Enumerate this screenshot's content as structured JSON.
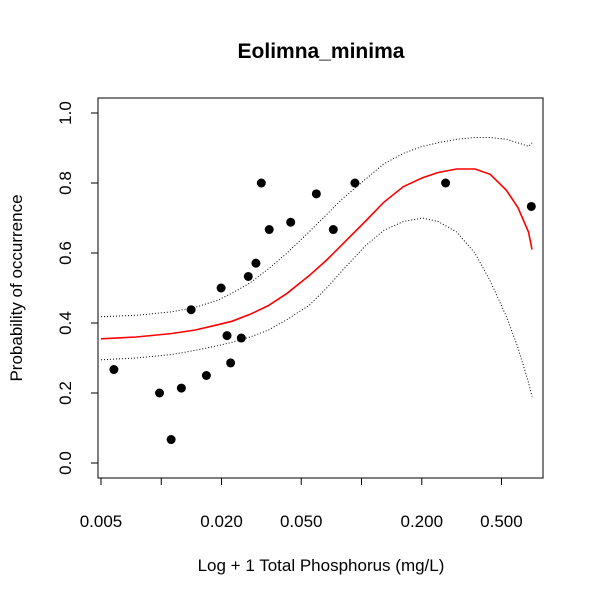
{
  "chart_data": {
    "type": "scatter",
    "title": "Eolimna_minima",
    "xlabel": "Log + 1 Total Phosphorus (mg/L)",
    "ylabel": "Probability of occurrence",
    "x_scale": "log",
    "xlim": [
      0.005,
      0.75
    ],
    "ylim": [
      0.0,
      1.0
    ],
    "x_ticks": [
      {
        "value": 0.005,
        "label": "0.005"
      },
      {
        "value": 0.01,
        "label": ""
      },
      {
        "value": 0.02,
        "label": "0.020"
      },
      {
        "value": 0.05,
        "label": "0.050"
      },
      {
        "value": 0.1,
        "label": ""
      },
      {
        "value": 0.2,
        "label": "0.200"
      },
      {
        "value": 0.5,
        "label": "0.500"
      }
    ],
    "y_ticks": [
      {
        "value": 0.0,
        "label": "0.0"
      },
      {
        "value": 0.2,
        "label": "0.2"
      },
      {
        "value": 0.4,
        "label": "0.4"
      },
      {
        "value": 0.6,
        "label": "0.6"
      },
      {
        "value": 0.8,
        "label": "0.8"
      },
      {
        "value": 1.0,
        "label": "1.0"
      }
    ],
    "grid": false,
    "points": {
      "x": [
        0.0058,
        0.0098,
        0.0112,
        0.0126,
        0.0141,
        0.0168,
        0.0199,
        0.0213,
        0.0222,
        0.0251,
        0.0272,
        0.0297,
        0.0316,
        0.0346,
        0.0443,
        0.0595,
        0.0723,
        0.0927,
        0.263,
        0.705
      ],
      "y": [
        0.267,
        0.2,
        0.067,
        0.214,
        0.438,
        0.25,
        0.5,
        0.364,
        0.286,
        0.357,
        0.533,
        0.571,
        0.8,
        0.667,
        0.688,
        0.769,
        0.667,
        0.8,
        0.8,
        0.733
      ],
      "color": "#000000"
    },
    "fit": {
      "x": [
        0.005,
        0.0075,
        0.0113,
        0.0148,
        0.0191,
        0.0225,
        0.0278,
        0.0343,
        0.0425,
        0.0547,
        0.067,
        0.0803,
        0.1044,
        0.1293,
        0.1621,
        0.2019,
        0.2413,
        0.2984,
        0.3686,
        0.4394,
        0.5278,
        0.6038,
        0.6823,
        0.7105
      ],
      "y": [
        0.355,
        0.36,
        0.37,
        0.38,
        0.395,
        0.405,
        0.425,
        0.45,
        0.485,
        0.535,
        0.58,
        0.625,
        0.69,
        0.745,
        0.79,
        0.815,
        0.83,
        0.84,
        0.84,
        0.825,
        0.78,
        0.73,
        0.66,
        0.61
      ],
      "color": "#ff0000"
    },
    "ci_upper": {
      "x": [
        0.005,
        0.0075,
        0.0113,
        0.0148,
        0.0191,
        0.0225,
        0.0278,
        0.0343,
        0.0425,
        0.0547,
        0.067,
        0.0803,
        0.1044,
        0.1293,
        0.1621,
        0.2019,
        0.2413,
        0.2984,
        0.3686,
        0.4394,
        0.5278,
        0.6038,
        0.6823,
        0.7105
      ],
      "y": [
        0.418,
        0.422,
        0.432,
        0.445,
        0.465,
        0.485,
        0.515,
        0.555,
        0.6,
        0.66,
        0.71,
        0.755,
        0.81,
        0.855,
        0.885,
        0.905,
        0.915,
        0.925,
        0.93,
        0.93,
        0.925,
        0.915,
        0.905,
        0.915
      ],
      "color": "#000000"
    },
    "ci_lower": {
      "x": [
        0.005,
        0.0075,
        0.0113,
        0.0148,
        0.0191,
        0.0225,
        0.0278,
        0.0343,
        0.0425,
        0.0547,
        0.067,
        0.0803,
        0.1044,
        0.1293,
        0.1621,
        0.2019,
        0.2413,
        0.2984,
        0.3686,
        0.4394,
        0.5278,
        0.6038,
        0.6823,
        0.7105
      ],
      "y": [
        0.295,
        0.3,
        0.31,
        0.322,
        0.335,
        0.345,
        0.36,
        0.38,
        0.41,
        0.45,
        0.5,
        0.55,
        0.62,
        0.665,
        0.69,
        0.7,
        0.69,
        0.66,
        0.6,
        0.52,
        0.42,
        0.33,
        0.23,
        0.19
      ],
      "color": "#000000"
    }
  }
}
